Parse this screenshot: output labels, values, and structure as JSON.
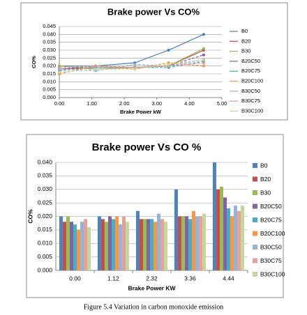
{
  "chart_data": [
    {
      "type": "line",
      "title": "Brake power Vs CO%",
      "x_label": "Brake Power kW",
      "y_label": "CO%",
      "x": [
        0,
        1.12,
        2.32,
        3.36,
        4.44
      ],
      "xlim": [
        0,
        5
      ],
      "xticks": [
        {
          "value": 0,
          "label": "0.00"
        },
        {
          "value": 1,
          "label": "1.00"
        },
        {
          "value": 2,
          "label": "2.00"
        },
        {
          "value": 3,
          "label": "3.00"
        },
        {
          "value": 4,
          "label": "4.00"
        },
        {
          "value": 5,
          "label": "5.00"
        }
      ],
      "ylim": [
        0,
        0.045
      ],
      "yticks": [
        {
          "value": 0,
          "label": "0.000"
        },
        {
          "value": 0.005,
          "label": "0.005"
        },
        {
          "value": 0.01,
          "label": "0.010"
        },
        {
          "value": 0.015,
          "label": "0.015"
        },
        {
          "value": 0.02,
          "label": "0.020"
        },
        {
          "value": 0.025,
          "label": "0.025"
        },
        {
          "value": 0.03,
          "label": "0.030"
        },
        {
          "value": 0.035,
          "label": "0.035"
        },
        {
          "value": 0.04,
          "label": "0.040"
        },
        {
          "value": 0.045,
          "label": "0.045"
        }
      ],
      "grid": true,
      "series": [
        {
          "name": "B0",
          "color": "#4a7ebb",
          "values": [
            0.02,
            0.02,
            0.022,
            0.03,
            0.04
          ]
        },
        {
          "name": "B20",
          "color": "#be4b48",
          "values": [
            0.018,
            0.019,
            0.019,
            0.02,
            0.03
          ]
        },
        {
          "name": "B30",
          "color": "#98b954",
          "values": [
            0.02,
            0.018,
            0.019,
            0.02,
            0.031
          ]
        },
        {
          "name": "B20C50",
          "color": "#7d60a0",
          "values": [
            0.018,
            0.02,
            0.019,
            0.02,
            0.027
          ]
        },
        {
          "name": "B20C75",
          "color": "#46aac5",
          "values": [
            0.017,
            0.019,
            0.019,
            0.019,
            0.023
          ]
        },
        {
          "name": "B20C100",
          "color": "#f69240",
          "values": [
            0.015,
            0.02,
            0.018,
            0.022,
            0.02
          ]
        },
        {
          "name": "B30C50",
          "color": "#95b3d7",
          "values": [
            0.018,
            0.017,
            0.021,
            0.02,
            0.024
          ]
        },
        {
          "name": "B30C75",
          "color": "#d99694",
          "values": [
            0.019,
            0.02,
            0.019,
            0.02,
            0.022
          ]
        },
        {
          "name": "B30C100",
          "color": "#c3d69b",
          "values": [
            0.016,
            0.018,
            0.018,
            0.021,
            0.024
          ]
        }
      ]
    },
    {
      "type": "bar",
      "title": "Brake power Vs CO %",
      "x_label": "Brake Power KW",
      "y_label": "CO%",
      "categories": [
        "0.00",
        "1.12",
        "2.32",
        "3.36",
        "4.44"
      ],
      "ylim": [
        0,
        0.04
      ],
      "yticks": [
        {
          "value": 0,
          "label": "0.000"
        },
        {
          "value": 0.005,
          "label": "0.005"
        },
        {
          "value": 0.01,
          "label": "0.010"
        },
        {
          "value": 0.015,
          "label": "0.015"
        },
        {
          "value": 0.02,
          "label": "0.020"
        },
        {
          "value": 0.025,
          "label": "0.025"
        },
        {
          "value": 0.03,
          "label": "0.030"
        },
        {
          "value": 0.035,
          "label": "0.035"
        },
        {
          "value": 0.04,
          "label": "0.040"
        }
      ],
      "grid": true,
      "series": [
        {
          "name": "B0",
          "color": "#4f81bd",
          "values": [
            0.02,
            0.02,
            0.022,
            0.03,
            0.04
          ]
        },
        {
          "name": "B20",
          "color": "#c0504d",
          "values": [
            0.018,
            0.019,
            0.019,
            0.02,
            0.03
          ]
        },
        {
          "name": "B30",
          "color": "#9bbb59",
          "values": [
            0.02,
            0.018,
            0.019,
            0.02,
            0.031
          ]
        },
        {
          "name": "B20C50",
          "color": "#8064a2",
          "values": [
            0.018,
            0.02,
            0.019,
            0.02,
            0.027
          ]
        },
        {
          "name": "B20C75",
          "color": "#4bacc6",
          "values": [
            0.017,
            0.019,
            0.019,
            0.019,
            0.023
          ]
        },
        {
          "name": "B20C100",
          "color": "#f79646",
          "values": [
            0.015,
            0.02,
            0.018,
            0.022,
            0.02
          ]
        },
        {
          "name": "B30C50",
          "color": "#95b3d7",
          "values": [
            0.018,
            0.017,
            0.021,
            0.02,
            0.024
          ]
        },
        {
          "name": "B30C75",
          "color": "#e6a09c",
          "values": [
            0.019,
            0.02,
            0.019,
            0.02,
            0.022
          ]
        },
        {
          "name": "B30C100",
          "color": "#c3d69b",
          "values": [
            0.016,
            0.018,
            0.018,
            0.021,
            0.024
          ]
        }
      ]
    }
  ],
  "caption": "Figure 5.4 Variation in carbon monoxide emission"
}
